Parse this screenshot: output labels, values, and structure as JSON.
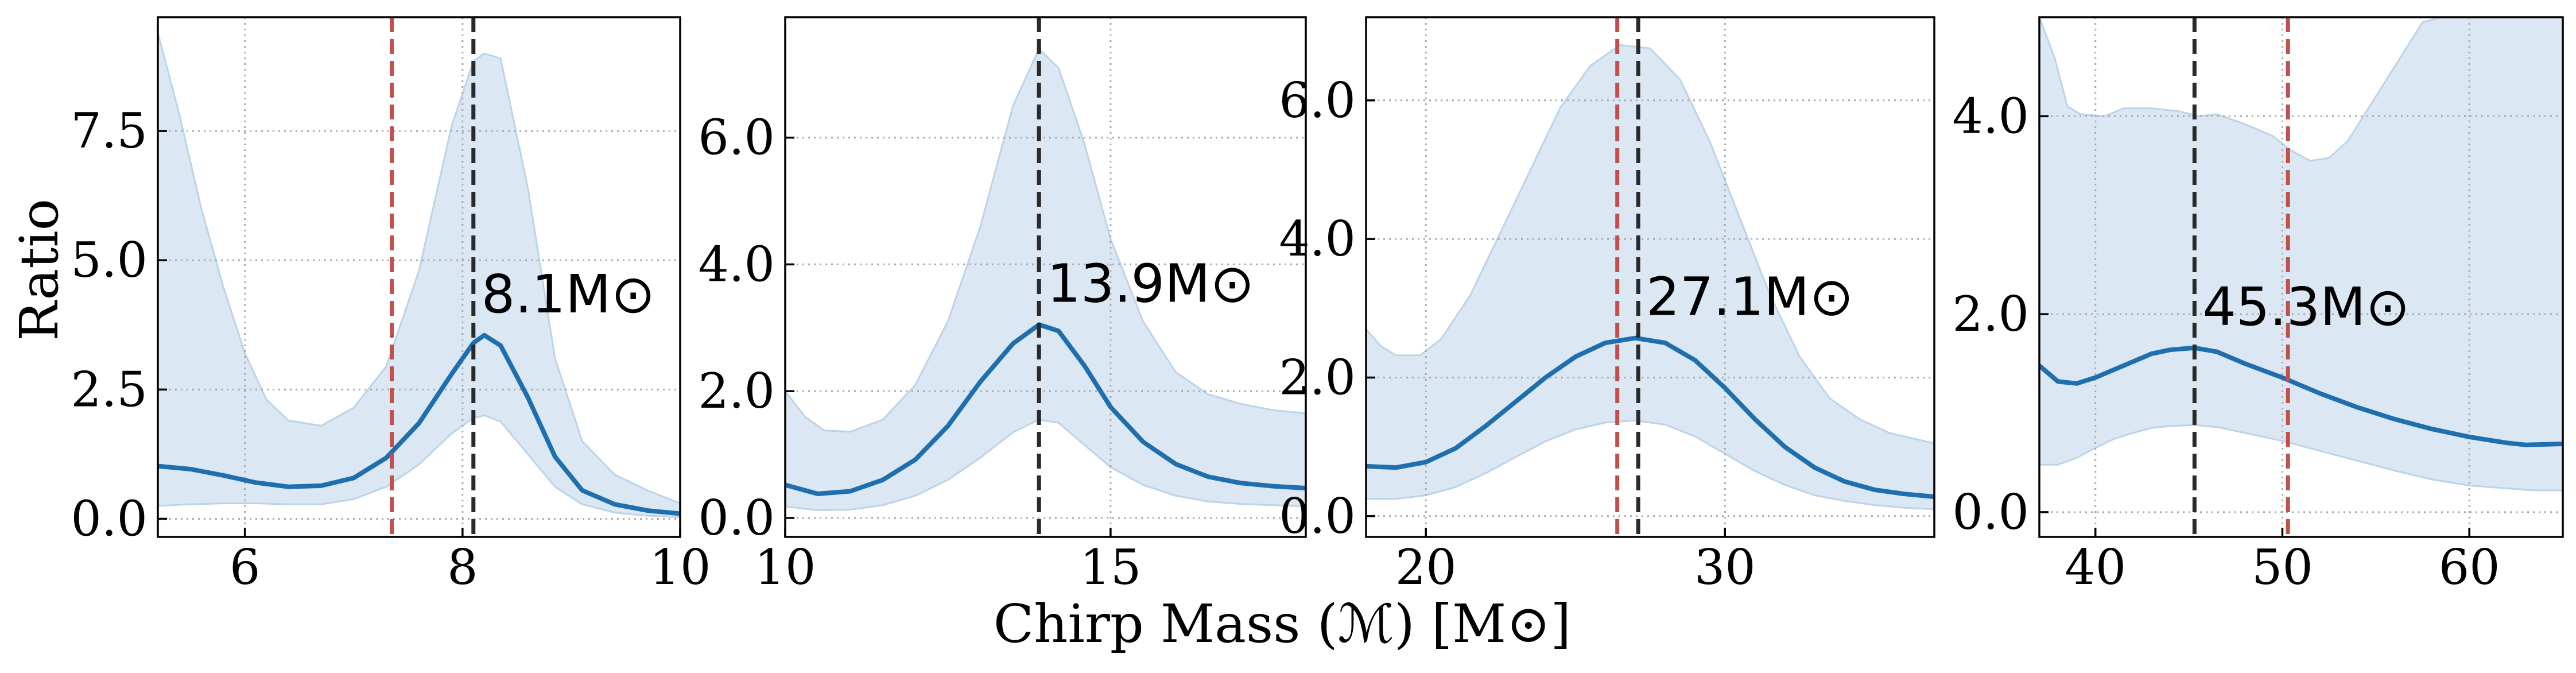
{
  "figure": {
    "ylabel": "Ratio",
    "xlabel": "Chirp Mass (ℳ) [M⊙]"
  },
  "colors": {
    "median_line": "#1f6fae",
    "band_fill": "#dbe7f2",
    "band_edge": "#bdd3e8",
    "red_marker": "#c0504d",
    "black_marker": "#2a2a2a",
    "grid": "#a9a9a9"
  },
  "chart_data": [
    {
      "type": "line",
      "xlim": [
        5.2,
        10.0
      ],
      "ylim": [
        -0.35,
        9.7
      ],
      "xticks": [
        6,
        8,
        10
      ],
      "xtick_labels": [
        "6",
        "8",
        "10"
      ],
      "yticks": [
        0.0,
        2.5,
        5.0,
        7.5
      ],
      "ytick_labels": [
        "0.0",
        "2.5",
        "5.0",
        "7.5"
      ],
      "red_line_x": 7.35,
      "black_line_x": 8.1,
      "annotation": "8.1M⊙",
      "grid": true,
      "median": [
        [
          5.2,
          1.02
        ],
        [
          5.5,
          0.96
        ],
        [
          5.8,
          0.84
        ],
        [
          6.1,
          0.7
        ],
        [
          6.4,
          0.62
        ],
        [
          6.7,
          0.64
        ],
        [
          7.0,
          0.79
        ],
        [
          7.3,
          1.18
        ],
        [
          7.6,
          1.85
        ],
        [
          7.9,
          2.8
        ],
        [
          8.1,
          3.4
        ],
        [
          8.2,
          3.55
        ],
        [
          8.35,
          3.35
        ],
        [
          8.6,
          2.35
        ],
        [
          8.85,
          1.2
        ],
        [
          9.1,
          0.55
        ],
        [
          9.4,
          0.28
        ],
        [
          9.7,
          0.16
        ],
        [
          10.0,
          0.1
        ]
      ],
      "band_upper": [
        [
          5.2,
          9.4
        ],
        [
          5.4,
          7.8
        ],
        [
          5.6,
          6.0
        ],
        [
          5.8,
          4.5
        ],
        [
          6.0,
          3.2
        ],
        [
          6.2,
          2.3
        ],
        [
          6.4,
          1.9
        ],
        [
          6.7,
          1.8
        ],
        [
          7.0,
          2.15
        ],
        [
          7.3,
          2.95
        ],
        [
          7.6,
          4.8
        ],
        [
          7.9,
          7.6
        ],
        [
          8.1,
          8.85
        ],
        [
          8.2,
          9.0
        ],
        [
          8.35,
          8.9
        ],
        [
          8.6,
          6.4
        ],
        [
          8.85,
          3.1
        ],
        [
          9.1,
          1.5
        ],
        [
          9.4,
          0.85
        ],
        [
          9.7,
          0.55
        ],
        [
          10.0,
          0.3
        ]
      ],
      "band_lower": [
        [
          5.2,
          0.25
        ],
        [
          5.5,
          0.28
        ],
        [
          5.8,
          0.3
        ],
        [
          6.1,
          0.3
        ],
        [
          6.4,
          0.28
        ],
        [
          6.7,
          0.28
        ],
        [
          7.0,
          0.38
        ],
        [
          7.3,
          0.62
        ],
        [
          7.6,
          1.05
        ],
        [
          7.9,
          1.65
        ],
        [
          8.1,
          1.95
        ],
        [
          8.2,
          2.0
        ],
        [
          8.35,
          1.88
        ],
        [
          8.6,
          1.25
        ],
        [
          8.85,
          0.62
        ],
        [
          9.1,
          0.28
        ],
        [
          9.4,
          0.12
        ],
        [
          9.7,
          0.06
        ],
        [
          10.0,
          0.03
        ]
      ]
    },
    {
      "type": "line",
      "xlim": [
        10.0,
        18.0
      ],
      "ylim": [
        -0.3,
        7.9
      ],
      "xticks": [
        10,
        15
      ],
      "xtick_labels": [
        "10",
        "15"
      ],
      "yticks": [
        0.0,
        2.0,
        4.0,
        6.0
      ],
      "ytick_labels": [
        "0.0",
        "2.0",
        "4.0",
        "6.0"
      ],
      "red_line_x": 13.9,
      "black_line_x": 13.9,
      "annotation": "13.9M⊙",
      "grid": true,
      "median": [
        [
          10.0,
          0.52
        ],
        [
          10.5,
          0.38
        ],
        [
          11.0,
          0.42
        ],
        [
          11.5,
          0.6
        ],
        [
          12.0,
          0.92
        ],
        [
          12.5,
          1.45
        ],
        [
          13.0,
          2.15
        ],
        [
          13.5,
          2.75
        ],
        [
          13.9,
          3.05
        ],
        [
          14.2,
          2.95
        ],
        [
          14.6,
          2.4
        ],
        [
          15.0,
          1.75
        ],
        [
          15.5,
          1.2
        ],
        [
          16.0,
          0.85
        ],
        [
          16.5,
          0.65
        ],
        [
          17.0,
          0.55
        ],
        [
          17.5,
          0.5
        ],
        [
          18.0,
          0.47
        ]
      ],
      "band_upper": [
        [
          10.0,
          2.0
        ],
        [
          10.3,
          1.6
        ],
        [
          10.6,
          1.38
        ],
        [
          11.0,
          1.36
        ],
        [
          11.5,
          1.55
        ],
        [
          12.0,
          2.1
        ],
        [
          12.5,
          3.1
        ],
        [
          13.0,
          4.6
        ],
        [
          13.5,
          6.5
        ],
        [
          13.9,
          7.4
        ],
        [
          14.2,
          7.1
        ],
        [
          14.6,
          5.9
        ],
        [
          15.0,
          4.4
        ],
        [
          15.5,
          3.1
        ],
        [
          16.0,
          2.3
        ],
        [
          16.5,
          1.95
        ],
        [
          17.0,
          1.8
        ],
        [
          17.5,
          1.7
        ],
        [
          18.0,
          1.65
        ]
      ],
      "band_lower": [
        [
          10.0,
          0.18
        ],
        [
          10.5,
          0.12
        ],
        [
          11.0,
          0.13
        ],
        [
          11.5,
          0.2
        ],
        [
          12.0,
          0.35
        ],
        [
          12.5,
          0.6
        ],
        [
          13.0,
          0.95
        ],
        [
          13.5,
          1.35
        ],
        [
          13.9,
          1.55
        ],
        [
          14.2,
          1.5
        ],
        [
          14.6,
          1.15
        ],
        [
          15.0,
          0.8
        ],
        [
          15.5,
          0.52
        ],
        [
          16.0,
          0.35
        ],
        [
          16.5,
          0.26
        ],
        [
          17.0,
          0.22
        ],
        [
          17.5,
          0.2
        ],
        [
          18.0,
          0.18
        ]
      ]
    },
    {
      "type": "line",
      "xlim": [
        18.0,
        37.0
      ],
      "ylim": [
        -0.3,
        7.2
      ],
      "xticks": [
        20,
        30
      ],
      "xtick_labels": [
        "20",
        "30"
      ],
      "yticks": [
        0.0,
        2.0,
        4.0,
        6.0
      ],
      "ytick_labels": [
        "0.0",
        "2.0",
        "4.0",
        "6.0"
      ],
      "red_line_x": 26.4,
      "black_line_x": 27.1,
      "annotation": "27.1M⊙",
      "grid": true,
      "median": [
        [
          18.0,
          0.72
        ],
        [
          19.0,
          0.7
        ],
        [
          20.0,
          0.78
        ],
        [
          21.0,
          0.98
        ],
        [
          22.0,
          1.3
        ],
        [
          23.0,
          1.65
        ],
        [
          24.0,
          2.0
        ],
        [
          25.0,
          2.3
        ],
        [
          26.0,
          2.5
        ],
        [
          27.0,
          2.57
        ],
        [
          28.0,
          2.5
        ],
        [
          29.0,
          2.25
        ],
        [
          30.0,
          1.85
        ],
        [
          31.0,
          1.4
        ],
        [
          32.0,
          1.0
        ],
        [
          33.0,
          0.7
        ],
        [
          34.0,
          0.5
        ],
        [
          35.0,
          0.38
        ],
        [
          36.0,
          0.32
        ],
        [
          37.0,
          0.28
        ]
      ],
      "band_upper": [
        [
          18.0,
          2.7
        ],
        [
          18.5,
          2.45
        ],
        [
          19.0,
          2.32
        ],
        [
          19.8,
          2.32
        ],
        [
          20.5,
          2.55
        ],
        [
          21.5,
          3.2
        ],
        [
          22.5,
          4.1
        ],
        [
          23.5,
          5.0
        ],
        [
          24.5,
          5.9
        ],
        [
          25.5,
          6.5
        ],
        [
          26.5,
          6.8
        ],
        [
          27.5,
          6.75
        ],
        [
          28.5,
          6.3
        ],
        [
          29.5,
          5.4
        ],
        [
          30.5,
          4.3
        ],
        [
          31.5,
          3.2
        ],
        [
          32.5,
          2.3
        ],
        [
          33.5,
          1.7
        ],
        [
          34.5,
          1.4
        ],
        [
          35.5,
          1.2
        ],
        [
          37.0,
          1.05
        ]
      ],
      "band_lower": [
        [
          18.0,
          0.25
        ],
        [
          19.0,
          0.25
        ],
        [
          20.0,
          0.3
        ],
        [
          21.0,
          0.42
        ],
        [
          22.0,
          0.62
        ],
        [
          23.0,
          0.85
        ],
        [
          24.0,
          1.08
        ],
        [
          25.0,
          1.25
        ],
        [
          26.0,
          1.35
        ],
        [
          27.0,
          1.38
        ],
        [
          28.0,
          1.32
        ],
        [
          29.0,
          1.15
        ],
        [
          30.0,
          0.9
        ],
        [
          31.0,
          0.65
        ],
        [
          32.0,
          0.45
        ],
        [
          33.0,
          0.3
        ],
        [
          34.0,
          0.22
        ],
        [
          35.0,
          0.16
        ],
        [
          36.0,
          0.12
        ],
        [
          37.0,
          0.1
        ]
      ]
    },
    {
      "type": "line",
      "xlim": [
        37.0,
        65.0
      ],
      "ylim": [
        -0.25,
        5.0
      ],
      "xticks": [
        40,
        50,
        60
      ],
      "xtick_labels": [
        "40",
        "50",
        "60"
      ],
      "yticks": [
        0.0,
        2.0,
        4.0
      ],
      "ytick_labels": [
        "0.0",
        "2.0",
        "4.0"
      ],
      "red_line_x": 50.3,
      "black_line_x": 45.3,
      "annotation": "45.3M⊙",
      "grid": true,
      "median": [
        [
          37.0,
          1.48
        ],
        [
          38.0,
          1.32
        ],
        [
          39.0,
          1.3
        ],
        [
          40.0,
          1.36
        ],
        [
          41.0,
          1.44
        ],
        [
          42.0,
          1.52
        ],
        [
          43.0,
          1.6
        ],
        [
          44.0,
          1.64
        ],
        [
          45.3,
          1.66
        ],
        [
          46.5,
          1.62
        ],
        [
          48.0,
          1.5
        ],
        [
          50.0,
          1.36
        ],
        [
          52.0,
          1.2
        ],
        [
          54.0,
          1.06
        ],
        [
          56.0,
          0.94
        ],
        [
          58.0,
          0.84
        ],
        [
          60.0,
          0.76
        ],
        [
          62.0,
          0.7
        ],
        [
          63.0,
          0.68
        ],
        [
          65.0,
          0.69
        ]
      ],
      "band_upper": [
        [
          37.0,
          5.0
        ],
        [
          37.8,
          4.6
        ],
        [
          38.5,
          4.1
        ],
        [
          39.2,
          4.02
        ],
        [
          40.5,
          4.0
        ],
        [
          41.5,
          4.08
        ],
        [
          43.0,
          4.08
        ],
        [
          44.5,
          4.05
        ],
        [
          45.5,
          4.0
        ],
        [
          46.5,
          4.02
        ],
        [
          48.0,
          3.92
        ],
        [
          49.5,
          3.8
        ],
        [
          50.5,
          3.65
        ],
        [
          51.5,
          3.55
        ],
        [
          52.5,
          3.58
        ],
        [
          53.5,
          3.75
        ],
        [
          54.5,
          4.05
        ],
        [
          56.0,
          4.5
        ],
        [
          57.5,
          4.95
        ],
        [
          58.5,
          5.0
        ],
        [
          65.0,
          5.0
        ]
      ],
      "band_lower": [
        [
          37.0,
          0.48
        ],
        [
          38.0,
          0.48
        ],
        [
          39.0,
          0.55
        ],
        [
          40.0,
          0.65
        ],
        [
          41.0,
          0.74
        ],
        [
          42.0,
          0.8
        ],
        [
          43.0,
          0.85
        ],
        [
          44.0,
          0.87
        ],
        [
          45.3,
          0.88
        ],
        [
          46.5,
          0.86
        ],
        [
          48.0,
          0.8
        ],
        [
          50.0,
          0.72
        ],
        [
          52.0,
          0.62
        ],
        [
          54.0,
          0.52
        ],
        [
          56.0,
          0.42
        ],
        [
          58.0,
          0.33
        ],
        [
          60.0,
          0.27
        ],
        [
          62.0,
          0.24
        ],
        [
          63.5,
          0.22
        ],
        [
          65.0,
          0.22
        ]
      ]
    }
  ]
}
